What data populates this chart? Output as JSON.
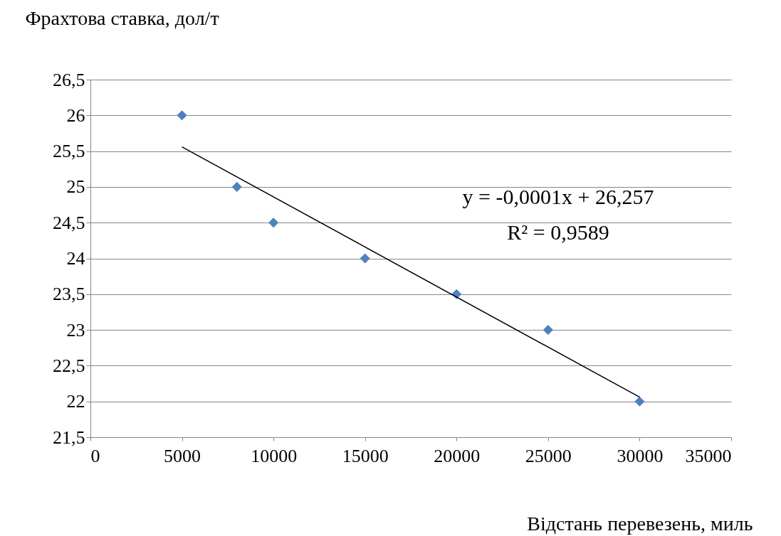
{
  "chart_data": {
    "type": "scatter",
    "ylabel": "Фрахтова ставка, дол/т",
    "xlabel": "Відстань перевезень, миль",
    "series": [
      {
        "color": "#4f81bd",
        "marker": "diamond",
        "x": [
          5000,
          8000,
          10000,
          15000,
          20000,
          25000,
          30000
        ],
        "values": [
          26,
          25,
          24.5,
          24,
          23.5,
          23,
          22
        ]
      },
      {
        "type": "line",
        "color": "#000000",
        "marker": "none",
        "line_style": "solid",
        "x": [
          5000,
          30000
        ],
        "values": [
          25.56,
          22.06
        ]
      }
    ],
    "annotations": [
      "y = -0,0001x + 26,257",
      "R² = 0,9589"
    ],
    "xlim": [
      0,
      35000
    ],
    "xticks": [
      0,
      5000,
      10000,
      15000,
      20000,
      25000,
      30000,
      35000
    ],
    "ylim": [
      21.5,
      26.5
    ],
    "yticks": [
      {
        "value": 21.5,
        "label": "21,5"
      },
      22,
      {
        "value": 22.5,
        "label": "22,5"
      },
      23,
      {
        "value": 23.5,
        "label": "23,5"
      },
      24,
      {
        "value": 24.5,
        "label": "24,5"
      },
      25,
      {
        "value": 25.5,
        "label": "25,5"
      },
      26,
      {
        "value": 26.5,
        "label": "26,5"
      }
    ],
    "grid": "y"
  }
}
